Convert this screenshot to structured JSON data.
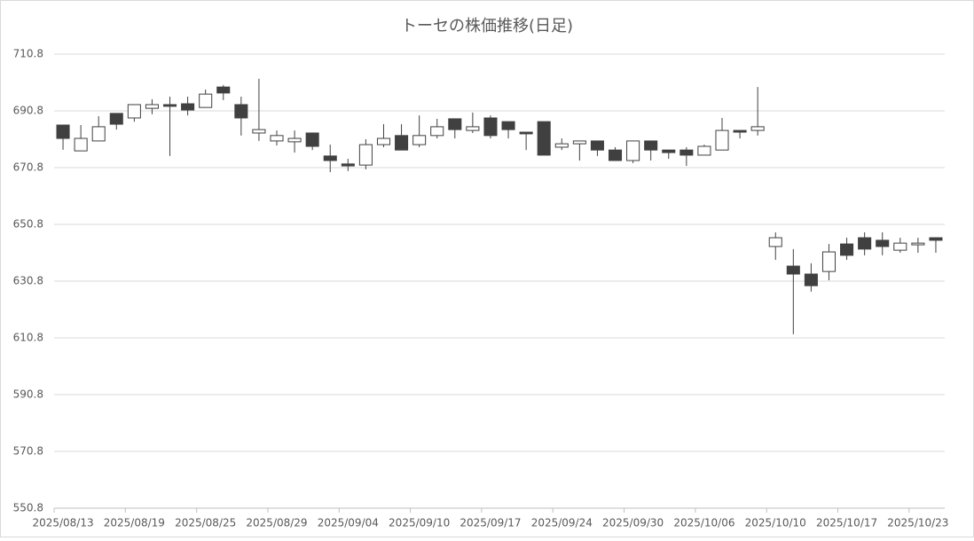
{
  "chart_data": {
    "type": "candlestick",
    "title": "トーセの株価推移(日足)",
    "categories": [
      "2025/08/13",
      null,
      null,
      null,
      "2025/08/19",
      null,
      null,
      null,
      "2025/08/25",
      null,
      null,
      null,
      "2025/08/29",
      null,
      null,
      null,
      "2025/09/04",
      null,
      null,
      null,
      "2025/09/10",
      null,
      null,
      null,
      "2025/09/17",
      null,
      null,
      null,
      "2025/09/24",
      null,
      null,
      null,
      "2025/09/30",
      null,
      null,
      null,
      "2025/10/06",
      null,
      null,
      null,
      "2025/10/10",
      null,
      null,
      null,
      "2025/10/17",
      null,
      null,
      null,
      "2025/10/23",
      null
    ],
    "open": [
      685.8,
      676.7,
      680.2,
      689.9,
      688.3,
      691.7,
      693.0,
      693.3,
      692.0,
      699.2,
      693.0,
      683.0,
      680.2,
      679.9,
      683.0,
      674.9,
      672.1,
      671.7,
      678.9,
      682.1,
      678.9,
      682.1,
      688.0,
      683.9,
      688.3,
      687.0,
      683.3,
      687.0,
      678.0,
      679.2,
      680.2,
      677.0,
      673.3,
      680.2,
      677.0,
      677.0,
      675.2,
      677.0,
      683.9,
      683.9,
      643.0,
      636.1,
      633.3,
      634.2,
      643.9,
      646.1,
      645.2,
      641.7,
      643.6,
      646.1
    ],
    "high": [
      685.8,
      685.8,
      688.9,
      689.9,
      693.0,
      694.9,
      695.8,
      695.8,
      698.3,
      699.9,
      695.8,
      702.1,
      683.9,
      683.9,
      683.0,
      678.9,
      673.9,
      680.8,
      686.1,
      686.1,
      689.2,
      688.0,
      688.0,
      690.2,
      689.2,
      687.0,
      683.3,
      687.0,
      681.1,
      680.2,
      680.2,
      678.0,
      680.2,
      680.2,
      677.0,
      678.0,
      678.9,
      688.3,
      683.9,
      699.2,
      648.0,
      642.1,
      637.1,
      643.9,
      646.1,
      648.0,
      648.0,
      646.1,
      646.1,
      646.1
    ],
    "low": [
      677.1,
      676.7,
      680.2,
      684.2,
      687.0,
      689.6,
      674.9,
      689.2,
      692.0,
      694.6,
      682.1,
      680.2,
      678.6,
      676.1,
      677.0,
      669.2,
      669.6,
      670.2,
      678.0,
      677.0,
      678.0,
      681.1,
      681.1,
      683.0,
      681.1,
      681.1,
      677.0,
      675.2,
      677.0,
      673.3,
      674.9,
      673.3,
      672.4,
      673.3,
      673.9,
      671.4,
      675.2,
      677.0,
      681.1,
      682.1,
      638.3,
      612.1,
      627.1,
      631.1,
      638.3,
      639.9,
      639.9,
      640.8,
      640.8,
      640.8
    ],
    "close": [
      681.1,
      681.1,
      685.2,
      686.1,
      693.0,
      693.0,
      692.4,
      691.1,
      696.7,
      697.1,
      688.3,
      684.2,
      682.1,
      681.1,
      678.3,
      673.3,
      671.4,
      678.9,
      681.1,
      677.0,
      682.1,
      685.2,
      684.2,
      685.2,
      682.1,
      684.2,
      682.7,
      675.2,
      679.2,
      680.2,
      677.0,
      673.3,
      680.2,
      677.0,
      676.1,
      675.2,
      678.3,
      683.9,
      683.3,
      685.2,
      646.1,
      633.3,
      629.2,
      641.1,
      639.9,
      642.1,
      643.0,
      644.2,
      644.2,
      645.2
    ],
    "up_color": "#ffffff",
    "down_color": "#404040",
    "edge_color": "#404040",
    "ylim": [
      550.8,
      710.8
    ],
    "yticks": [
      550.8,
      570.8,
      590.8,
      610.8,
      630.8,
      650.8,
      670.8,
      690.8,
      710.8
    ],
    "grid": true
  }
}
